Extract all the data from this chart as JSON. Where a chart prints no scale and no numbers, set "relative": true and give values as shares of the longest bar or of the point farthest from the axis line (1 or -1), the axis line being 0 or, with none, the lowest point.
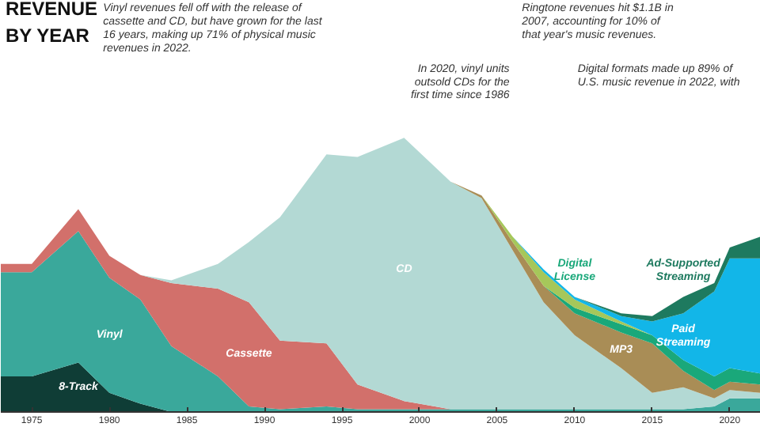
{
  "chart_data": {
    "type": "area",
    "stacked": true,
    "relative": true,
    "title": "REVENUE BY YEAR",
    "x": [
      1973,
      1975,
      1978,
      1980,
      1982,
      1984,
      1987,
      1989,
      1991,
      1994,
      1996,
      1999,
      2002,
      2004,
      2006,
      2008,
      2010,
      2013,
      2015,
      2017,
      2019,
      2020,
      2022
    ],
    "xlim": [
      1973,
      2022
    ],
    "xticks": [
      1975,
      1980,
      1985,
      1990,
      1995,
      2000,
      2005,
      2010,
      2015,
      2020
    ],
    "series": [
      {
        "name": "8-Track",
        "color": "#0f3d36",
        "values": [
          0.13,
          0.13,
          0.18,
          0.07,
          0.03,
          0,
          null,
          null,
          null,
          null,
          null,
          null,
          null,
          null,
          null,
          null,
          null,
          null,
          null,
          null,
          null,
          null,
          null
        ]
      },
      {
        "name": "Vinyl",
        "color": "#3aa89b",
        "values": [
          0.38,
          0.38,
          0.48,
          0.42,
          0.38,
          0.24,
          0.13,
          0.02,
          0.01,
          0.02,
          0.01,
          0.01,
          0.01,
          0.01,
          0.01,
          0.01,
          0.01,
          0.01,
          0.01,
          0.01,
          0.02,
          0.05,
          0.05
        ]
      },
      {
        "name": "Cassette",
        "color": "#d2706b",
        "values": [
          0.03,
          0.03,
          0.08,
          0.08,
          0.09,
          0.23,
          0.32,
          0.38,
          0.25,
          0.23,
          0.09,
          0.03,
          0,
          null,
          null,
          null,
          null,
          null,
          null,
          null,
          null,
          null,
          null
        ]
      },
      {
        "name": "CD",
        "color": "#b3d9d4",
        "values": [
          null,
          null,
          null,
          null,
          0,
          0.01,
          0.09,
          0.22,
          0.45,
          0.69,
          0.83,
          0.96,
          0.83,
          0.77,
          0.58,
          0.39,
          0.27,
          0.15,
          0.06,
          0.08,
          0.03,
          0.03,
          0.02
        ]
      },
      {
        "name": "MP3",
        "color": "#a98d56",
        "values": [
          null,
          null,
          null,
          null,
          null,
          null,
          null,
          null,
          null,
          null,
          null,
          null,
          0,
          0.01,
          0.03,
          0.06,
          0.08,
          0.13,
          0.18,
          0.06,
          0.03,
          0.03,
          0.03
        ]
      },
      {
        "name": "Digital License",
        "color": "#1aa87a",
        "values": [
          null,
          null,
          null,
          null,
          null,
          null,
          null,
          null,
          null,
          null,
          null,
          null,
          null,
          null,
          null,
          0,
          0.02,
          0.03,
          0.03,
          0.04,
          0.05,
          0.05,
          0.04
        ]
      },
      {
        "color": "#a6c75a",
        "values": [
          null,
          null,
          null,
          null,
          null,
          null,
          null,
          null,
          null,
          null,
          null,
          null,
          null,
          0,
          0.02,
          0.05,
          0.03,
          0.01,
          0,
          null,
          null,
          null,
          null
        ]
      },
      {
        "name": "Paid Streaming",
        "color": "#12b6e8",
        "values": [
          null,
          null,
          null,
          null,
          null,
          null,
          null,
          null,
          null,
          null,
          null,
          null,
          null,
          null,
          0,
          0.01,
          0.01,
          0.02,
          0.05,
          0.17,
          0.31,
          0.4,
          0.42
        ]
      },
      {
        "name": "Ad-Supported Streaming",
        "color": "#1e7a5f",
        "values": [
          null,
          null,
          null,
          null,
          null,
          null,
          null,
          null,
          null,
          null,
          null,
          null,
          null,
          null,
          null,
          null,
          0,
          0.01,
          0.02,
          0.06,
          0.03,
          0.04,
          0.08
        ]
      }
    ],
    "annotations": [
      "Vinyl revenues fell off with the release of cassette and CD, but have grown for the last 16 years, making up 71% of physical music revenues in 2022.",
      "Ringtone revenues hit $1.1B in 2007, accounting for 10% of that year's music revenues.",
      "In 2020, vinyl units outsold CDs for the first time since 1986",
      "Digital formats made up 89% of U.S. music revenue in 2022, with"
    ]
  }
}
